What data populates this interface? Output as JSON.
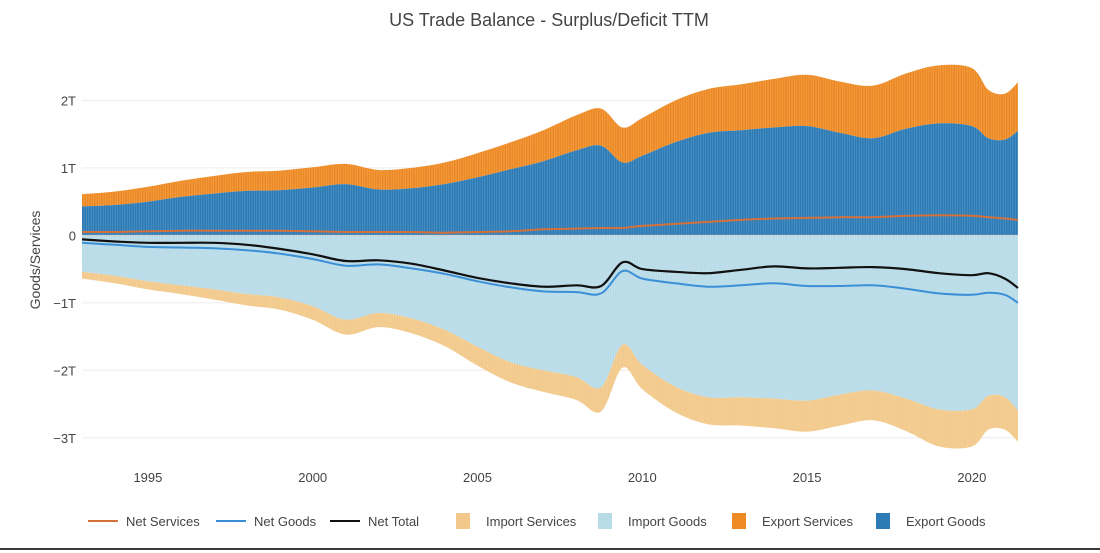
{
  "chart_data": {
    "type": "area",
    "title": "US Trade Balance - Surplus/Deficit TTM",
    "xlabel": "",
    "ylabel": "Goods/Services",
    "xlim": [
      1993.0,
      2021.4
    ],
    "ylim": [
      -3.3,
      2.6
    ],
    "x_ticks": [
      {
        "value": 1995,
        "label": "1995"
      },
      {
        "value": 2000,
        "label": "2000"
      },
      {
        "value": 2005,
        "label": "2005"
      },
      {
        "value": 2010,
        "label": "2010"
      },
      {
        "value": 2015,
        "label": "2015"
      },
      {
        "value": 2020,
        "label": "2020"
      }
    ],
    "y_ticks": [
      {
        "value": 2,
        "label": "2T"
      },
      {
        "value": 1,
        "label": "1T"
      },
      {
        "value": 0,
        "label": "0"
      },
      {
        "value": -1,
        "label": "−1T"
      },
      {
        "value": -2,
        "label": "−2T"
      },
      {
        "value": -3,
        "label": "−3T"
      }
    ],
    "x": [
      1993,
      1994,
      1995,
      1996,
      1997,
      1998,
      1999,
      2000,
      2001,
      2002,
      2003,
      2004,
      2005,
      2006,
      2007,
      2008,
      2008.75,
      2009.4,
      2010,
      2011,
      2012,
      2013,
      2014,
      2015,
      2016,
      2017,
      2018,
      2019,
      2020,
      2020.5,
      2021,
      2021.4
    ],
    "series": [
      {
        "name": "Export Goods",
        "kind": "stacked-up",
        "color": "#2c7bb6",
        "values": [
          0.43,
          0.45,
          0.5,
          0.57,
          0.62,
          0.66,
          0.67,
          0.71,
          0.76,
          0.68,
          0.7,
          0.76,
          0.86,
          0.98,
          1.1,
          1.26,
          1.33,
          1.08,
          1.18,
          1.38,
          1.52,
          1.56,
          1.6,
          1.62,
          1.52,
          1.44,
          1.58,
          1.66,
          1.62,
          1.44,
          1.42,
          1.55
        ]
      },
      {
        "name": "Export Services",
        "kind": "stacked-up",
        "color": "#ee8a24",
        "values": [
          0.18,
          0.2,
          0.22,
          0.24,
          0.26,
          0.28,
          0.29,
          0.3,
          0.3,
          0.29,
          0.3,
          0.32,
          0.36,
          0.4,
          0.46,
          0.52,
          0.55,
          0.52,
          0.56,
          0.62,
          0.65,
          0.68,
          0.72,
          0.76,
          0.76,
          0.78,
          0.82,
          0.86,
          0.86,
          0.72,
          0.68,
          0.72
        ]
      },
      {
        "name": "Import Goods",
        "kind": "stacked-down",
        "color": "#b8dbe8",
        "values": [
          0.54,
          0.6,
          0.68,
          0.74,
          0.8,
          0.87,
          0.92,
          1.05,
          1.25,
          1.15,
          1.23,
          1.4,
          1.65,
          1.88,
          2.0,
          2.1,
          2.25,
          1.62,
          1.92,
          2.24,
          2.4,
          2.4,
          2.42,
          2.45,
          2.36,
          2.3,
          2.42,
          2.58,
          2.58,
          2.38,
          2.4,
          2.6
        ]
      },
      {
        "name": "Import Services",
        "kind": "stacked-down",
        "color": "#f2c98a",
        "values": [
          0.1,
          0.11,
          0.12,
          0.13,
          0.15,
          0.17,
          0.18,
          0.2,
          0.22,
          0.21,
          0.22,
          0.24,
          0.28,
          0.3,
          0.32,
          0.34,
          0.36,
          0.34,
          0.36,
          0.38,
          0.4,
          0.42,
          0.44,
          0.46,
          0.46,
          0.44,
          0.48,
          0.55,
          0.55,
          0.5,
          0.48,
          0.46
        ]
      },
      {
        "name": "Net Services",
        "kind": "line",
        "color": "#d4703a",
        "values": [
          0.05,
          0.05,
          0.06,
          0.07,
          0.07,
          0.07,
          0.07,
          0.06,
          0.05,
          0.05,
          0.05,
          0.04,
          0.05,
          0.06,
          0.09,
          0.1,
          0.11,
          0.11,
          0.14,
          0.17,
          0.2,
          0.23,
          0.25,
          0.26,
          0.27,
          0.27,
          0.29,
          0.3,
          0.29,
          0.27,
          0.25,
          0.23
        ]
      },
      {
        "name": "Net Goods",
        "kind": "line",
        "color": "#3a8fd6",
        "values": [
          -0.11,
          -0.14,
          -0.17,
          -0.18,
          -0.19,
          -0.22,
          -0.27,
          -0.35,
          -0.45,
          -0.43,
          -0.49,
          -0.57,
          -0.68,
          -0.77,
          -0.83,
          -0.84,
          -0.86,
          -0.53,
          -0.64,
          -0.71,
          -0.76,
          -0.74,
          -0.71,
          -0.75,
          -0.75,
          -0.74,
          -0.79,
          -0.86,
          -0.88,
          -0.85,
          -0.88,
          -1.0
        ]
      },
      {
        "name": "Net Total",
        "kind": "line",
        "color": "#111111",
        "values": [
          -0.06,
          -0.09,
          -0.11,
          -0.11,
          -0.11,
          -0.14,
          -0.2,
          -0.28,
          -0.38,
          -0.37,
          -0.42,
          -0.52,
          -0.63,
          -0.71,
          -0.76,
          -0.74,
          -0.75,
          -0.4,
          -0.5,
          -0.54,
          -0.56,
          -0.51,
          -0.46,
          -0.49,
          -0.48,
          -0.47,
          -0.5,
          -0.56,
          -0.59,
          -0.56,
          -0.64,
          -0.78
        ]
      }
    ],
    "legend": {
      "position": "bottom",
      "items": [
        {
          "label": "Net Services",
          "type": "line",
          "color": "#d4703a"
        },
        {
          "label": "Net Goods",
          "type": "line",
          "color": "#3a8fd6"
        },
        {
          "label": "Net Total",
          "type": "line",
          "color": "#111111"
        },
        {
          "label": "Import Services",
          "type": "box",
          "color": "#f2c98a"
        },
        {
          "label": "Import Goods",
          "type": "box",
          "color": "#b8dbe8"
        },
        {
          "label": "Export Services",
          "type": "box",
          "color": "#ee8a24"
        },
        {
          "label": "Export Goods",
          "type": "box",
          "color": "#2c7bb6"
        }
      ]
    },
    "grid": true
  }
}
